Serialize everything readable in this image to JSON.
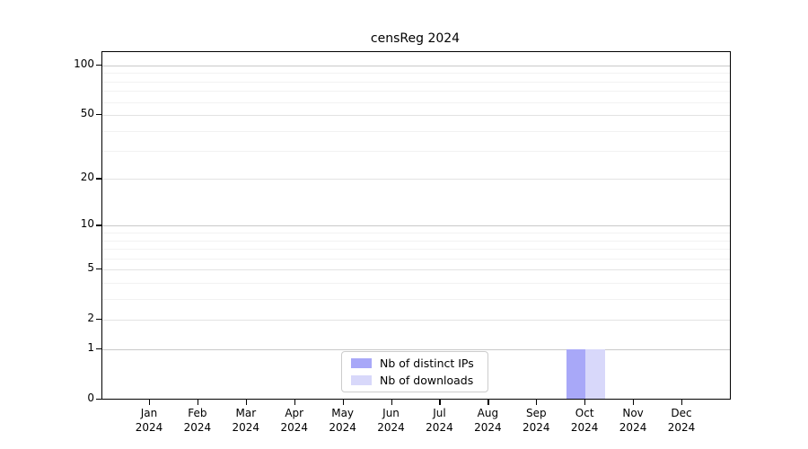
{
  "chart_data": {
    "type": "bar",
    "title": "censReg 2024",
    "xlabel": "",
    "ylabel": "",
    "yscale": "log1p",
    "ylim": [
      0,
      120
    ],
    "grid": true,
    "legend_position": "lower center (inside axes)",
    "y_major_ticks": [
      0,
      1,
      2,
      5,
      10,
      20,
      50,
      100
    ],
    "y_minor_gridlines": [
      3,
      4,
      6,
      7,
      8,
      9,
      30,
      40,
      60,
      70,
      80,
      90
    ],
    "x_categories": [
      {
        "month": "Jan",
        "year": "2024"
      },
      {
        "month": "Feb",
        "year": "2024"
      },
      {
        "month": "Mar",
        "year": "2024"
      },
      {
        "month": "Apr",
        "year": "2024"
      },
      {
        "month": "May",
        "year": "2024"
      },
      {
        "month": "Jun",
        "year": "2024"
      },
      {
        "month": "Jul",
        "year": "2024"
      },
      {
        "month": "Aug",
        "year": "2024"
      },
      {
        "month": "Sep",
        "year": "2024"
      },
      {
        "month": "Oct",
        "year": "2024"
      },
      {
        "month": "Nov",
        "year": "2024"
      },
      {
        "month": "Dec",
        "year": "2024"
      }
    ],
    "series": [
      {
        "name": "Nb of distinct IPs",
        "color": "#a8a8f8",
        "values": [
          0,
          0,
          0,
          0,
          0,
          0,
          0,
          0,
          0,
          1,
          0,
          0
        ]
      },
      {
        "name": "Nb of downloads",
        "color": "#d8d8fa",
        "values": [
          0,
          0,
          0,
          0,
          0,
          0,
          0,
          0,
          0,
          1,
          0,
          0
        ]
      }
    ],
    "colors": {
      "background": "#ffffff",
      "spine": "#000000",
      "grid_decade": "#c9c9c9",
      "grid_labeled": "#e3e3e3",
      "grid_minor": "#f2f2f2",
      "tick_label": "#000000",
      "legend_border": "#cccccc"
    }
  }
}
